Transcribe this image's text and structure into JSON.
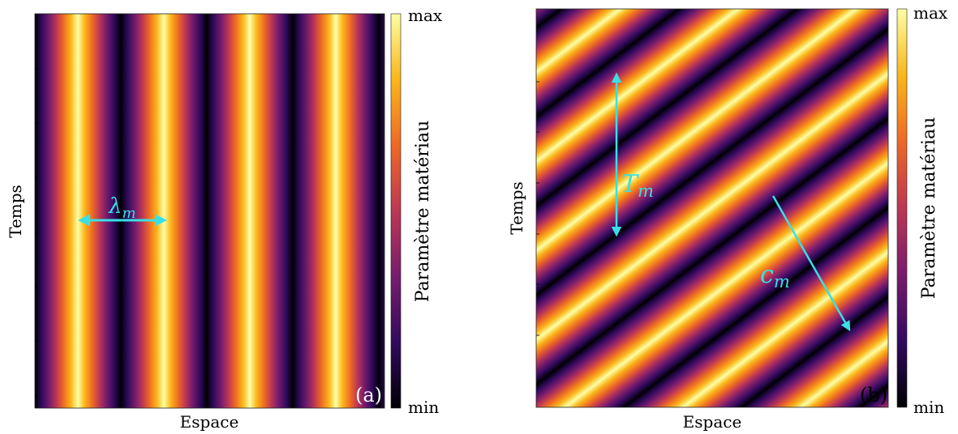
{
  "panels": [
    {
      "id": "a",
      "pattern": "stationary",
      "xlabel": "Espace",
      "ylabel": "Temps",
      "colorbar": {
        "label": "Paramètre matériau",
        "max": "max",
        "min": "min"
      },
      "panel_label": "(a)",
      "annotations": [
        {
          "symbol": "λ",
          "subscript": "m"
        }
      ]
    },
    {
      "id": "b",
      "pattern": "traveling",
      "xlabel": "Espace",
      "ylabel": "Temps",
      "colorbar": {
        "label": "Paramètre matériau",
        "max": "max",
        "min": "min"
      },
      "panel_label": "(b)",
      "annotations": [
        {
          "symbol": "T",
          "subscript": "m"
        },
        {
          "symbol": "c",
          "subscript": "m"
        }
      ]
    }
  ],
  "colors": {
    "annotation": "#38e0e6",
    "colormap": [
      "#000004",
      "#320a5e",
      "#781c6d",
      "#bc3754",
      "#ed6925",
      "#fbb61a",
      "#fcffa4"
    ]
  }
}
